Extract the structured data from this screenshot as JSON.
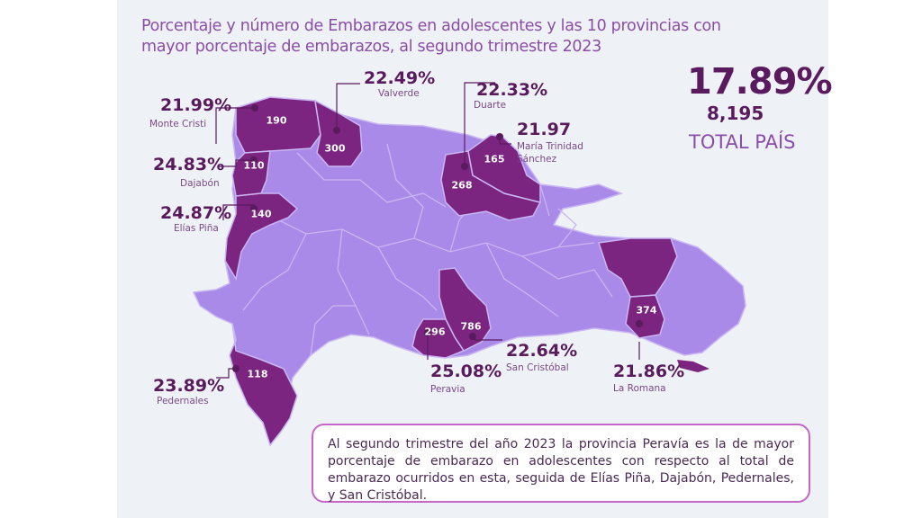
{
  "title": "Porcentaje y número de Embarazos en adolescentes y las 10 provincias con mayor porcentaje de embarazos, al segundo trimestre 2023",
  "total": {
    "percent": "17.89%",
    "count": "8,195",
    "label": "TOTAL PAÍS"
  },
  "provinces": [
    {
      "name": "Monte Cristi",
      "percent": "21.99%",
      "count": "190"
    },
    {
      "name": "Valverde",
      "percent": "22.49%",
      "count": "300"
    },
    {
      "name": "Duarte",
      "percent": "22.33%",
      "count": "268"
    },
    {
      "name": "María Trinidad Sánchez",
      "name_line1": "María Trinidad",
      "name_line2": "Sánchez",
      "percent": "21.97",
      "count": "165"
    },
    {
      "name": "Dajabón",
      "percent": "24.83%",
      "count": "110"
    },
    {
      "name": "Elías Piña",
      "percent": "24.87%",
      "count": "140"
    },
    {
      "name": "Pedernales",
      "percent": "23.89%",
      "count": "118"
    },
    {
      "name": "Peravia",
      "percent": "25.08%",
      "count": "296"
    },
    {
      "name": "San Cristóbal",
      "percent": "22.64%",
      "count": "786"
    },
    {
      "name": "La Romana",
      "percent": "21.86%",
      "count": "374"
    }
  ],
  "note": "Al segundo trimestre del año 2023 la provincia Peravía es la de mayor porcentaje de embarazo en adolescentes con respecto al total de embarazo ocurridos en esta, seguida de Elías Piña, Dajabón,  Pedernales, y San Cristóbal.",
  "colors": {
    "highlight": "#7b2580",
    "base": "#a98ae8",
    "text_dark": "#5a1a5e",
    "border": "#c566c9"
  }
}
